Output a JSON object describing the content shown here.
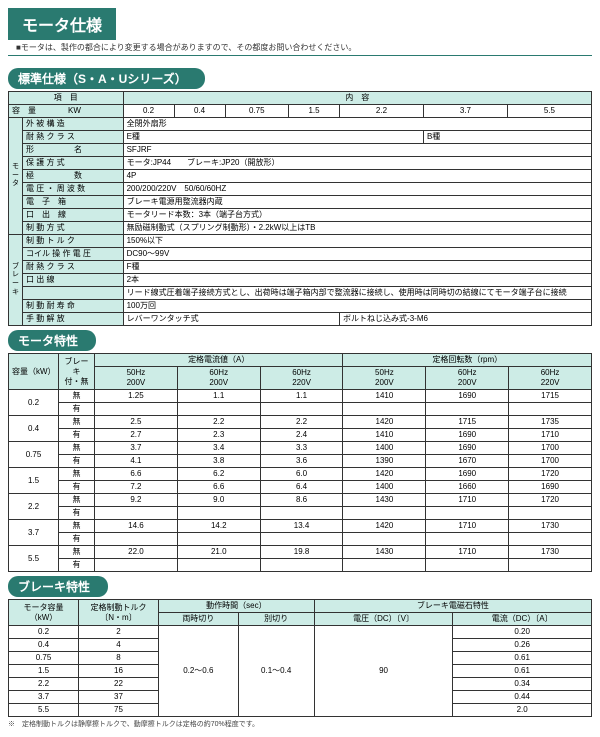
{
  "colors": {
    "brand": "#2a7a70",
    "header_bg": "#cdece6",
    "border": "#333333",
    "text": "#000000"
  },
  "page": {
    "title": "モータ仕様",
    "subtitle": "■モータは、製作の都合により変更する場合がありますので、その都度お問い合わせください。"
  },
  "section1": {
    "title": "標準仕様（S・A・Uシリーズ）",
    "header": {
      "item": "項　目",
      "content": "内　容"
    },
    "cap_label": "容　量　　　　KW",
    "cap_values": [
      "0.2",
      "0.4",
      "0.75",
      "1.5",
      "2.2",
      "3.7",
      "5.5"
    ],
    "side_motor": "モータ",
    "side_brake": "ブレーキ",
    "rows_motor": [
      {
        "label": "外 被 構 造",
        "value": "全閉外扇形"
      },
      {
        "label": "耐 熱 ク ラ ス",
        "value": "E種",
        "value2": "B種"
      },
      {
        "label": "形　　　　　名",
        "value": "SFJRF"
      },
      {
        "label": "保 護 方 式",
        "value": "モータ:JP44　　ブレーキ:JP20（開放形）"
      },
      {
        "label": "極　　　　　数",
        "value": "4P"
      },
      {
        "label": "電 圧 ・ 周 波 数",
        "value": "200/200/220V　50/60/60HZ"
      },
      {
        "label": "電　子　箱",
        "value": "ブレーキ電源用整流器内蔵"
      },
      {
        "label": "口　出　線",
        "value": "モータリード本数：3本（端子台方式）"
      },
      {
        "label": "制 動 方 式",
        "value": "無励磁制動式（スプリング制動形）・2.2kW以上はTB"
      }
    ],
    "rows_brake": [
      {
        "label": "制 動 ト ル ク",
        "value": "150%以下"
      },
      {
        "label": "コイル 操 作 電 圧",
        "value": "DC90～99V"
      },
      {
        "label": "耐 熱 ク ラ ス",
        "value": "F種"
      },
      {
        "label": "口 出 線",
        "value": "2本"
      },
      {
        "label": "",
        "value": "リード線式圧着端子接続方式とし、出荷時は端子箱内部で整流器に接続し、使用時は同時切の結線にてモータ端子台に接続"
      },
      {
        "label": "制 動 耐 寿 命",
        "value": "100万回"
      },
      {
        "label": "手 動 解 放",
        "value": "レバーワンタッチ式",
        "value2": "ボルトねじ込み式-3-M6"
      }
    ]
  },
  "section2": {
    "title": "モータ特性",
    "header": {
      "cap": "容量（kW）",
      "brake": "ブレーキ\n付・無",
      "current": "定格電流値（A）",
      "rpm": "定格回転数（rpm）",
      "sub50_200": "50Hz\n200V",
      "sub60_200": "60Hz\n200V",
      "sub60_220": "60Hz\n220V"
    },
    "brake_yes": "有",
    "brake_no": "無",
    "rows": [
      {
        "cap": "0.2",
        "a_no": [
          "1.25",
          "1.1",
          "1.1"
        ],
        "rpm_no": [
          "1410",
          "1690",
          "1715"
        ],
        "a_yes": [
          "",
          "",
          ""
        ],
        "rpm_yes": [
          "",
          "",
          ""
        ]
      },
      {
        "cap": "0.4",
        "a_no": [
          "2.5",
          "2.2",
          "2.2"
        ],
        "rpm_no": [
          "1420",
          "1715",
          "1735"
        ],
        "a_yes": [
          "2.7",
          "2.3",
          "2.4"
        ],
        "rpm_yes": [
          "1410",
          "1690",
          "1710"
        ]
      },
      {
        "cap": "0.75",
        "a_no": [
          "3.7",
          "3.4",
          "3.3"
        ],
        "rpm_no": [
          "1400",
          "1690",
          "1700"
        ],
        "a_yes": [
          "4.1",
          "3.8",
          "3.6"
        ],
        "rpm_yes": [
          "1390",
          "1670",
          "1700"
        ]
      },
      {
        "cap": "1.5",
        "a_no": [
          "6.6",
          "6.2",
          "6.0"
        ],
        "rpm_no": [
          "1420",
          "1690",
          "1720"
        ],
        "a_yes": [
          "7.2",
          "6.6",
          "6.4"
        ],
        "rpm_yes": [
          "1400",
          "1660",
          "1690"
        ]
      },
      {
        "cap": "2.2",
        "a_no": [
          "9.2",
          "9.0",
          "8.6"
        ],
        "rpm_no": [
          "1430",
          "1710",
          "1720"
        ],
        "a_yes": [
          "",
          "",
          ""
        ],
        "rpm_yes": [
          "",
          "",
          ""
        ]
      },
      {
        "cap": "3.7",
        "a_no": [
          "14.6",
          "14.2",
          "13.4"
        ],
        "rpm_no": [
          "1420",
          "1710",
          "1730"
        ],
        "a_yes": [
          "",
          "",
          ""
        ],
        "rpm_yes": [
          "",
          "",
          ""
        ]
      },
      {
        "cap": "5.5",
        "a_no": [
          "22.0",
          "21.0",
          "19.8"
        ],
        "rpm_no": [
          "1430",
          "1710",
          "1730"
        ],
        "a_yes": [
          "",
          "",
          ""
        ],
        "rpm_yes": [
          "",
          "",
          ""
        ]
      }
    ]
  },
  "section3": {
    "title": "ブレーキ特性",
    "header": {
      "cap": "モータ容量（kW）",
      "torque": "定格制動トルク\n〔N・m〕",
      "time": "動作時間（sec）",
      "time_same": "両時切り",
      "time_sep": "別切り",
      "mag": "ブレーキ電磁石特性",
      "volt": "電圧（DC）〔V〕",
      "amp": "電流（DC）〔A〕"
    },
    "time_same_val": "0.2～0.6",
    "time_sep_val": "0.1～0.4",
    "volt_val": "90",
    "rows": [
      {
        "cap": "0.2",
        "torque": "2",
        "amp": "0.20"
      },
      {
        "cap": "0.4",
        "torque": "4",
        "amp": "0.26"
      },
      {
        "cap": "0.75",
        "torque": "8",
        "amp": "0.61"
      },
      {
        "cap": "1.5",
        "torque": "16",
        "amp": "0.61"
      },
      {
        "cap": "2.2",
        "torque": "22",
        "amp": "0.34"
      },
      {
        "cap": "3.7",
        "torque": "37",
        "amp": "0.44"
      },
      {
        "cap": "5.5",
        "torque": "75",
        "amp": "2.0"
      }
    ],
    "footnote": "※　定格制動トルクは静摩擦トルクで、動摩擦トルクは定格の約70%程度です。"
  }
}
